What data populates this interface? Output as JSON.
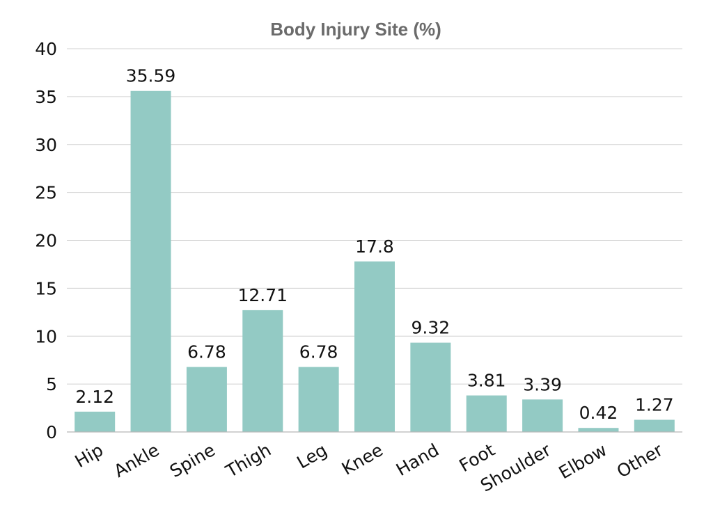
{
  "chart_data": {
    "type": "bar",
    "title": "Body Injury Site (%)",
    "xlabel": "",
    "ylabel": "",
    "categories": [
      "Hip",
      "Ankle",
      "Spine",
      "Thigh",
      "Leg",
      "Knee",
      "Hand",
      "Foot",
      "Shoulder",
      "Elbow",
      "Other"
    ],
    "values": [
      2.12,
      35.59,
      6.78,
      12.71,
      6.78,
      17.8,
      9.32,
      3.81,
      3.39,
      0.42,
      1.27
    ],
    "value_labels": [
      "2.12",
      "35.59",
      "6.78",
      "12.71",
      "6.78",
      "17.8",
      "9.32",
      "3.81",
      "3.39",
      "0.42",
      "1.27"
    ],
    "ylim": [
      0,
      40
    ],
    "yticks": [
      0,
      5,
      10,
      15,
      20,
      25,
      30,
      35,
      40
    ],
    "grid": true,
    "legend": "none",
    "bar_color": "#93cac4"
  }
}
